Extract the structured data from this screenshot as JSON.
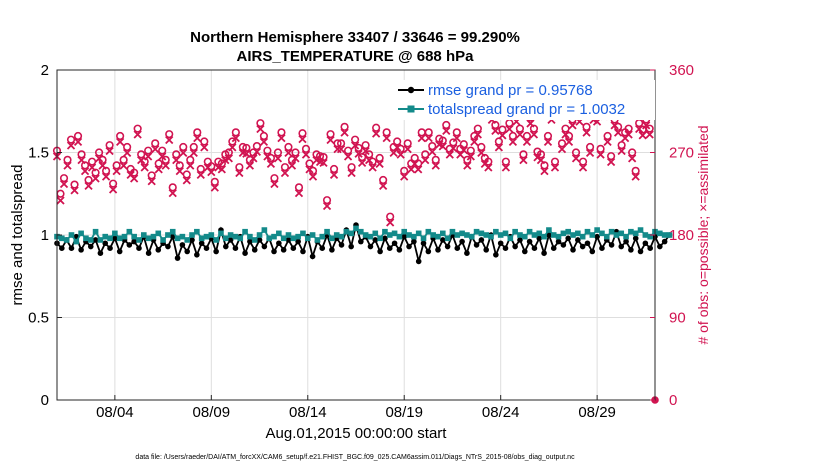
{
  "chart_data": {
    "type": "line",
    "title": [
      "Northern Hemisphere 33407 / 33646 = 99.290%",
      "AIRS_TEMPERATURE @ 688 hPa"
    ],
    "xlabel": "Aug.01,2015 00:00:00 start",
    "ylabel": "rmse and totalspread",
    "y2label": "# of obs: o=possible; ×=assimilated",
    "footnote": "data file: /Users/raeder/DAI/ATM_forcXX/CAM6_setup/f.e21.FHIST_BGC.f09_025.CAM6assim.011/Diags_NTrS_2015-08/obs_diag_output.nc",
    "xlim": [
      1,
      32
    ],
    "x_ticks": [
      {
        "x": 4,
        "label": "08/04"
      },
      {
        "x": 9,
        "label": "08/09"
      },
      {
        "x": 14,
        "label": "08/14"
      },
      {
        "x": 19,
        "label": "08/19"
      },
      {
        "x": 24,
        "label": "08/24"
      },
      {
        "x": 29,
        "label": "08/29"
      }
    ],
    "ylim": [
      0,
      2
    ],
    "y_ticks": [
      0,
      0.5,
      1,
      1.5,
      2
    ],
    "y2lim": [
      0,
      360
    ],
    "y2_ticks": [
      0,
      90,
      180,
      270,
      360
    ],
    "legend_loc": "top-right",
    "x_start": 1.0,
    "x_step": 0.25,
    "series": [
      {
        "name": "rmse grand pr = 0.95768",
        "color": "#000000",
        "axis": "left",
        "values": [
          0.95,
          0.92,
          0.97,
          0.92,
          0.99,
          0.91,
          0.96,
          0.93,
          0.97,
          0.89,
          0.95,
          0.92,
          0.98,
          0.9,
          0.97,
          0.94,
          0.96,
          0.92,
          0.99,
          0.89,
          0.97,
          0.91,
          0.95,
          0.93,
          0.99,
          0.86,
          0.94,
          0.9,
          0.97,
          0.88,
          0.95,
          0.92,
          0.98,
          0.9,
          1.03,
          0.93,
          0.97,
          0.92,
          0.99,
          0.89,
          0.96,
          0.91,
          0.97,
          0.93,
          0.98,
          0.9,
          0.95,
          0.91,
          0.97,
          0.92,
          0.96,
          0.9,
          0.99,
          0.87,
          0.96,
          0.92,
          1.0,
          0.91,
          0.98,
          0.94,
          1.03,
          0.93,
          1.06,
          0.96,
          0.99,
          0.93,
          0.97,
          0.9,
          0.98,
          0.92,
          0.95,
          0.91,
          0.99,
          0.93,
          0.96,
          0.84,
          0.95,
          0.9,
          0.98,
          0.91,
          0.97,
          0.93,
          1.0,
          0.92,
          0.96,
          0.89,
          0.99,
          0.94,
          0.97,
          0.91,
          1.0,
          0.88,
          0.95,
          0.92,
          0.99,
          0.93,
          0.97,
          0.9,
          0.96,
          0.92,
          0.98,
          0.89,
          1.0,
          0.92,
          0.96,
          0.94,
          0.98,
          0.91,
          0.97,
          0.93,
          0.95,
          0.9,
          0.99,
          0.92,
          0.97,
          0.94,
          1.02,
          0.93,
          0.96,
          0.91,
          0.98,
          0.9,
          0.95,
          0.92,
          0.99,
          0.93,
          0.96,
          1.0
        ]
      },
      {
        "name": "totalspread grand pr = 1.0032",
        "color": "#138a8a",
        "axis": "left",
        "values": [
          0.99,
          0.98,
          0.97,
          1.0,
          0.96,
          1.01,
          0.98,
          0.97,
          1.02,
          0.97,
          0.99,
          0.98,
          1.01,
          0.98,
          0.99,
          1.02,
          0.99,
          0.97,
          1.0,
          0.98,
          0.99,
          1.01,
          0.97,
          1.0,
          1.02,
          0.98,
          0.99,
          0.97,
          1.0,
          1.02,
          0.98,
          0.99,
          1.0,
          0.97,
          1.01,
          0.98,
          1.0,
          0.99,
          0.98,
          1.02,
          0.99,
          0.97,
          1.0,
          1.03,
          0.98,
          0.99,
          1.01,
          0.98,
          1.0,
          0.98,
          0.99,
          1.01,
          0.98,
          1.0,
          0.97,
          0.99,
          1.02,
          0.98,
          1.0,
          0.99,
          1.02,
          1.01,
          1.04,
          1.02,
          1.0,
          0.99,
          1.01,
          0.98,
          1.02,
          1.0,
          1.01,
          0.99,
          1.02,
          1.0,
          0.99,
          1.01,
          0.98,
          1.02,
          1.0,
          0.99,
          1.01,
          0.98,
          1.02,
          1.0,
          1.01,
          1.0,
          0.99,
          1.02,
          1.01,
          1.0,
          0.99,
          1.02,
          1.0,
          1.01,
          0.98,
          1.02,
          1.0,
          0.99,
          1.02,
          1.0,
          1.01,
          0.99,
          1.03,
          1.0,
          0.99,
          1.01,
          1.02,
          1.0,
          1.01,
          0.99,
          1.02,
          1.0,
          1.03,
          1.01,
          0.99,
          1.02,
          1.0,
          1.01,
          0.99,
          1.02,
          1.01,
          1.03,
          1.0,
          0.99,
          1.02,
          1.01,
          1.0,
          1.0
        ]
      },
      {
        "name": "# of obs possible",
        "color": "#d11451",
        "axis": "right",
        "marker": "o",
        "values": [
          272,
          225,
          242,
          262,
          284,
          235,
          288,
          268,
          256,
          240,
          260,
          248,
          270,
          262,
          250,
          278,
          236,
          256,
          288,
          262,
          276,
          252,
          248,
          296,
          268,
          260,
          272,
          245,
          280,
          258,
          272,
          262,
          290,
          232,
          268,
          256,
          276,
          246,
          262,
          276,
          292,
          252,
          282,
          260,
          255,
          238,
          260,
          258,
          268,
          270,
          282,
          292,
          254,
          276,
          275,
          262,
          270,
          277,
          302,
          288,
          272,
          264,
          242,
          270,
          292,
          254,
          276,
          262,
          270,
          232,
          291,
          274,
          258,
          250,
          268,
          266,
          265,
          218,
          290,
          252,
          280,
          280,
          298,
          272,
          254,
          284,
          275,
          265,
          278,
          268,
          260,
          297,
          264,
          240,
          292,
          200,
          276,
          282,
          274,
          250,
          280,
          258,
          264,
          258,
          292,
          268,
          292,
          277,
          262,
          285,
          283,
          300,
          274,
          281,
          292,
          274,
          279,
          262,
          272,
          288,
          296,
          276,
          264,
          260,
          312,
          300,
          282,
          295,
          260,
          302,
          288,
          310,
          296,
          268,
          288,
          308,
          296,
          271,
          268,
          256,
          288,
          312,
          260,
          316,
          280,
          296,
          288,
          306,
          270,
          310,
          260,
          298,
          276,
          312,
          310,
          274,
          316,
          288,
          266,
          306,
          298,
          278,
          292,
          296,
          270,
          250,
          302,
          295,
          306,
          296
        ]
      },
      {
        "name": "# of obs assimilated",
        "color": "#d11451",
        "axis": "right",
        "marker": "x",
        "values": [
          270,
          222,
          240,
          260,
          282,
          233,
          286,
          266,
          254,
          238,
          258,
          246,
          268,
          260,
          248,
          276,
          234,
          254,
          286,
          260,
          274,
          250,
          246,
          294,
          266,
          258,
          270,
          243,
          278,
          256,
          270,
          260,
          288,
          230,
          266,
          254,
          274,
          244,
          260,
          274,
          290,
          250,
          280,
          258,
          253,
          236,
          258,
          256,
          266,
          268,
          280,
          290,
          252,
          274,
          273,
          260,
          268,
          275,
          300,
          286,
          270,
          262,
          240,
          268,
          290,
          252,
          274,
          260,
          268,
          230,
          289,
          272,
          256,
          248,
          266,
          264,
          263,
          216,
          288,
          250,
          278,
          278,
          296,
          270,
          252,
          282,
          273,
          263,
          276,
          266,
          258,
          295,
          262,
          238,
          290,
          198,
          274,
          280,
          272,
          248,
          278,
          256,
          262,
          256,
          290,
          266,
          290,
          275,
          260,
          283,
          281,
          298,
          272,
          279,
          290,
          272,
          277,
          260,
          270,
          286,
          294,
          274,
          262,
          258,
          310,
          298,
          280,
          293,
          258,
          300,
          286,
          308,
          294,
          266,
          286,
          306,
          294,
          269,
          266,
          254,
          286,
          310,
          258,
          314,
          278,
          294,
          286,
          304,
          268,
          308,
          258,
          296,
          274,
          310,
          308,
          272,
          314,
          286,
          264,
          304,
          296,
          276,
          290,
          294,
          268,
          248,
          300,
          293,
          304,
          294
        ]
      }
    ]
  },
  "obs_x_start": 1.0,
  "obs_x_step": 0.1818,
  "colors": {
    "rmse": "#000000",
    "spread": "#138a8a",
    "obs": "#d11451",
    "legend_text": "#1a5fe0"
  }
}
